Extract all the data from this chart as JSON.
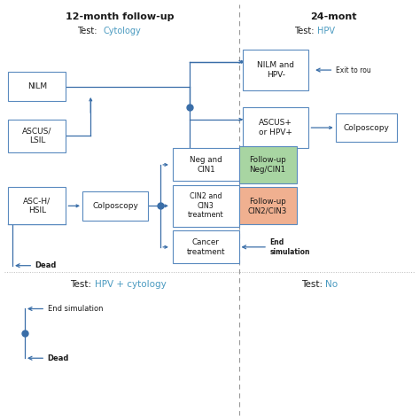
{
  "title_left": "12-month follow-up",
  "subtitle_left_plain": "Test:  ",
  "subtitle_left_colored": "Cytology",
  "title_right": "24-mont",
  "subtitle_right_plain": "Test: ",
  "subtitle_right_colored": "HPV",
  "test_bottom_plain": "Test: ",
  "test_bottom_colored": "HPV + cytology",
  "test_right_bottom_plain": "Test: ",
  "test_right_bottom_colored": "No",
  "bg_color": "#ffffff",
  "blue": "#3a6ea8",
  "green_fill": "#a8d5a2",
  "orange_fill": "#f0b090",
  "box_border": "#5a8abf",
  "text_color": "#1a1a1a",
  "cyan_text": "#4a9ac0",
  "dead_bold": true
}
